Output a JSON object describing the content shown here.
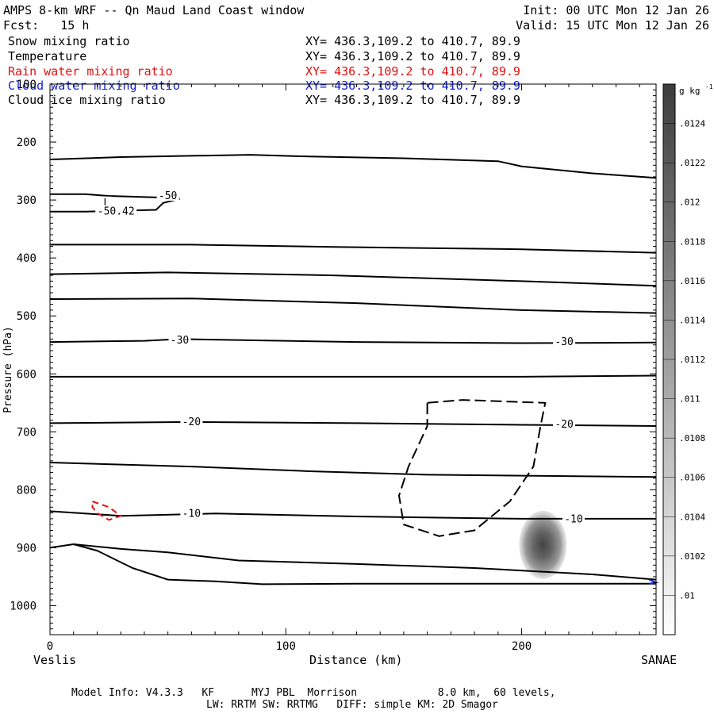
{
  "header": {
    "title": "AMPS 8-km WRF -- Qn Maud Land Coast window",
    "init": "Init: 00 UTC Mon 12 Jan 26",
    "fcst": "Fcst:   15 h",
    "valid": "Valid: 15 UTC Mon 12 Jan 26"
  },
  "fields": [
    {
      "name": "Snow mixing ratio",
      "xy": "XY= 436.3,109.2 to 410.7, 89.9",
      "color": "#000000"
    },
    {
      "name": "Temperature",
      "xy": "XY= 436.3,109.2 to 410.7, 89.9",
      "color": "#000000"
    },
    {
      "name": "Rain water mixing ratio",
      "xy": "XY= 436.3,109.2 to 410.7, 89.9",
      "color": "#e01010"
    },
    {
      "name": "Cloud water mixing ratio",
      "xy": "XY= 436.3,109.2 to 410.7, 89.9",
      "color": "#1020d0"
    },
    {
      "name": "Cloud ice mixing ratio",
      "xy": "XY= 436.3,109.2 to 410.7, 89.9",
      "color": "#000000"
    }
  ],
  "footer": {
    "model_info": "Model Info: V4.3.3   KF      MYJ PBL  Morrison             8.0 km,  60 levels,",
    "physics": "LW: RRTM SW: RRTMG   DIFF: simple KM: 2D Smagor"
  },
  "chart_data": {
    "type": "contour",
    "xlabel": "Distance (km)",
    "ylabel": "Pressure (hPa)",
    "xlim": [
      0,
      257
    ],
    "ylim": [
      1050,
      100
    ],
    "xticks": [
      0,
      100,
      200
    ],
    "yticks": [
      100,
      200,
      300,
      400,
      500,
      600,
      700,
      800,
      900,
      1000
    ],
    "x_left_label": "Veslis",
    "x_right_label": "SANAE",
    "colorbar": {
      "unit": "g kg",
      "unit_exp": "-1",
      "levels": [
        ".01",
        ".0102",
        ".0104",
        ".0106",
        ".0108",
        ".011",
        ".0112",
        ".0114",
        ".0116",
        ".0118",
        ".012",
        ".0122",
        ".0124"
      ]
    },
    "temperature_labels": [
      {
        "text": "-50",
        "x": 50,
        "p": 293
      },
      {
        "text": "L",
        "x": 24,
        "p": 305
      },
      {
        "text": "-50.42",
        "x": 28,
        "p": 320
      },
      {
        "text": "-30",
        "x": 55,
        "p": 542
      },
      {
        "text": "-30",
        "x": 218,
        "p": 545
      },
      {
        "text": "-20",
        "x": 60,
        "p": 683
      },
      {
        "text": "-20",
        "x": 218,
        "p": 687
      },
      {
        "text": "-10",
        "x": 60,
        "p": 841
      },
      {
        "text": "-10",
        "x": 222,
        "p": 851
      }
    ],
    "temperature_isotherms": [
      [
        [
          0,
          230
        ],
        [
          30,
          226
        ],
        [
          85,
          222
        ],
        [
          110,
          225
        ],
        [
          150,
          228
        ],
        [
          190,
          233
        ],
        [
          200,
          242
        ],
        [
          230,
          254
        ],
        [
          257,
          262
        ]
      ],
      [
        [
          0,
          377
        ],
        [
          60,
          377
        ],
        [
          120,
          381
        ],
        [
          200,
          385
        ],
        [
          257,
          391
        ]
      ],
      [
        [
          0,
          428
        ],
        [
          50,
          425
        ],
        [
          120,
          430
        ],
        [
          200,
          440
        ],
        [
          257,
          448
        ]
      ],
      [
        [
          0,
          471
        ],
        [
          60,
          470
        ],
        [
          130,
          478
        ],
        [
          200,
          490
        ],
        [
          257,
          495
        ]
      ],
      [
        [
          0,
          545
        ],
        [
          40,
          543
        ],
        [
          55,
          540
        ],
        [
          130,
          545
        ],
        [
          200,
          547
        ],
        [
          257,
          546
        ]
      ],
      [
        [
          0,
          605
        ],
        [
          60,
          605
        ],
        [
          140,
          605
        ],
        [
          200,
          605
        ],
        [
          257,
          603
        ]
      ],
      [
        [
          0,
          685
        ],
        [
          60,
          683
        ],
        [
          130,
          685
        ],
        [
          200,
          688
        ],
        [
          257,
          690
        ]
      ],
      [
        [
          0,
          753
        ],
        [
          60,
          760
        ],
        [
          110,
          768
        ],
        [
          160,
          774
        ],
        [
          257,
          778
        ]
      ],
      [
        [
          0,
          837
        ],
        [
          30,
          845
        ],
        [
          70,
          841
        ],
        [
          130,
          846
        ],
        [
          200,
          850
        ],
        [
          257,
          850
        ]
      ],
      [
        [
          0,
          900
        ],
        [
          10,
          894
        ],
        [
          30,
          902
        ],
        [
          50,
          908
        ],
        [
          80,
          922
        ],
        [
          130,
          928
        ],
        [
          180,
          935
        ],
        [
          230,
          946
        ],
        [
          257,
          955
        ]
      ],
      [
        [
          10,
          894
        ],
        [
          20,
          905
        ],
        [
          35,
          935
        ],
        [
          50,
          955
        ],
        [
          70,
          958
        ],
        [
          90,
          963
        ],
        [
          130,
          962
        ],
        [
          200,
          962
        ],
        [
          257,
          962
        ]
      ]
    ],
    "temperature_closed_upper": [
      [
        0,
        290
      ],
      [
        15,
        290
      ],
      [
        25,
        293
      ],
      [
        50,
        296
      ],
      [
        55,
        298
      ],
      [
        48,
        305
      ],
      [
        45,
        317
      ],
      [
        15,
        320
      ],
      [
        0,
        320
      ]
    ],
    "snow_contour": [
      [
        160,
        650
      ],
      [
        175,
        645
      ],
      [
        195,
        648
      ],
      [
        210,
        650
      ],
      [
        208,
        690
      ],
      [
        205,
        760
      ],
      [
        195,
        820
      ],
      [
        180,
        870
      ],
      [
        165,
        880
      ],
      [
        150,
        860
      ],
      [
        148,
        810
      ],
      [
        152,
        760
      ],
      [
        160,
        690
      ],
      [
        160,
        650
      ]
    ],
    "rain_contour": [
      [
        18,
        820
      ],
      [
        25,
        830
      ],
      [
        30,
        845
      ],
      [
        25,
        852
      ],
      [
        20,
        840
      ],
      [
        18,
        830
      ],
      [
        18,
        820
      ]
    ],
    "cloud_water_contour": [
      [
        254,
        955
      ],
      [
        257,
        960
      ],
      [
        254,
        962
      ]
    ],
    "cloud_ice_blob": {
      "x": 209,
      "p": 895,
      "value": ".0124"
    }
  }
}
